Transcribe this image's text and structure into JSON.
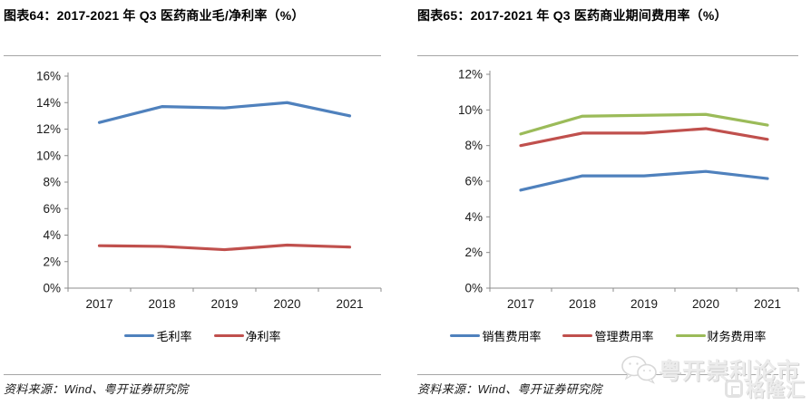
{
  "panels": [
    {
      "title": "图表64：2017-2021 年 Q3 医药商业毛/净利率（%）",
      "source": "资料来源：Wind、粤开证券研究院"
    },
    {
      "title": "图表65：2017-2021 年 Q3 医药商业期间费用率（%）",
      "source": "资料来源：Wind、粤开证券研究院"
    }
  ],
  "chart_data": [
    {
      "type": "line",
      "title": "图表64：2017-2021 年 Q3 医药商业毛/净利率（%）",
      "categories": [
        "2017",
        "2018",
        "2019",
        "2020",
        "2021"
      ],
      "series": [
        {
          "name": "毛利率",
          "color": "#4F81BD",
          "values": [
            12.5,
            13.7,
            13.6,
            14.0,
            13.0
          ]
        },
        {
          "name": "净利率",
          "color": "#C0504D",
          "values": [
            3.2,
            3.15,
            2.9,
            3.25,
            3.1
          ]
        }
      ],
      "ylim": [
        0,
        16
      ],
      "ytick_step": 2,
      "ytick_format": "percent",
      "grid": false,
      "legend_position": "bottom"
    },
    {
      "type": "line",
      "title": "图表65：2017-2021 年 Q3 医药商业期间费用率（%）",
      "categories": [
        "2017",
        "2018",
        "2019",
        "2020",
        "2021"
      ],
      "series": [
        {
          "name": "销售费用率",
          "color": "#4F81BD",
          "values": [
            5.5,
            6.3,
            6.3,
            6.55,
            6.15
          ]
        },
        {
          "name": "管理费用率",
          "color": "#C0504D",
          "values": [
            8.0,
            8.7,
            8.7,
            8.95,
            8.35
          ]
        },
        {
          "name": "财务费用率",
          "color": "#9BBB59",
          "values": [
            8.65,
            9.65,
            9.7,
            9.75,
            9.15
          ]
        }
      ],
      "ylim": [
        0,
        12
      ],
      "ytick_step": 2,
      "ytick_format": "percent",
      "grid": false,
      "legend_position": "bottom"
    }
  ],
  "watermark": {
    "wechat_text": "粤开崇利论市",
    "logo_text": "格隆汇"
  },
  "colors": {
    "series_blue": "#4F81BD",
    "series_red": "#C0504D",
    "series_green": "#9BBB59",
    "axis": "#8c8c8c",
    "tick_label": "#1a1a1a",
    "separator": "#a6a6a6",
    "watermark": "#e4e4e4"
  }
}
